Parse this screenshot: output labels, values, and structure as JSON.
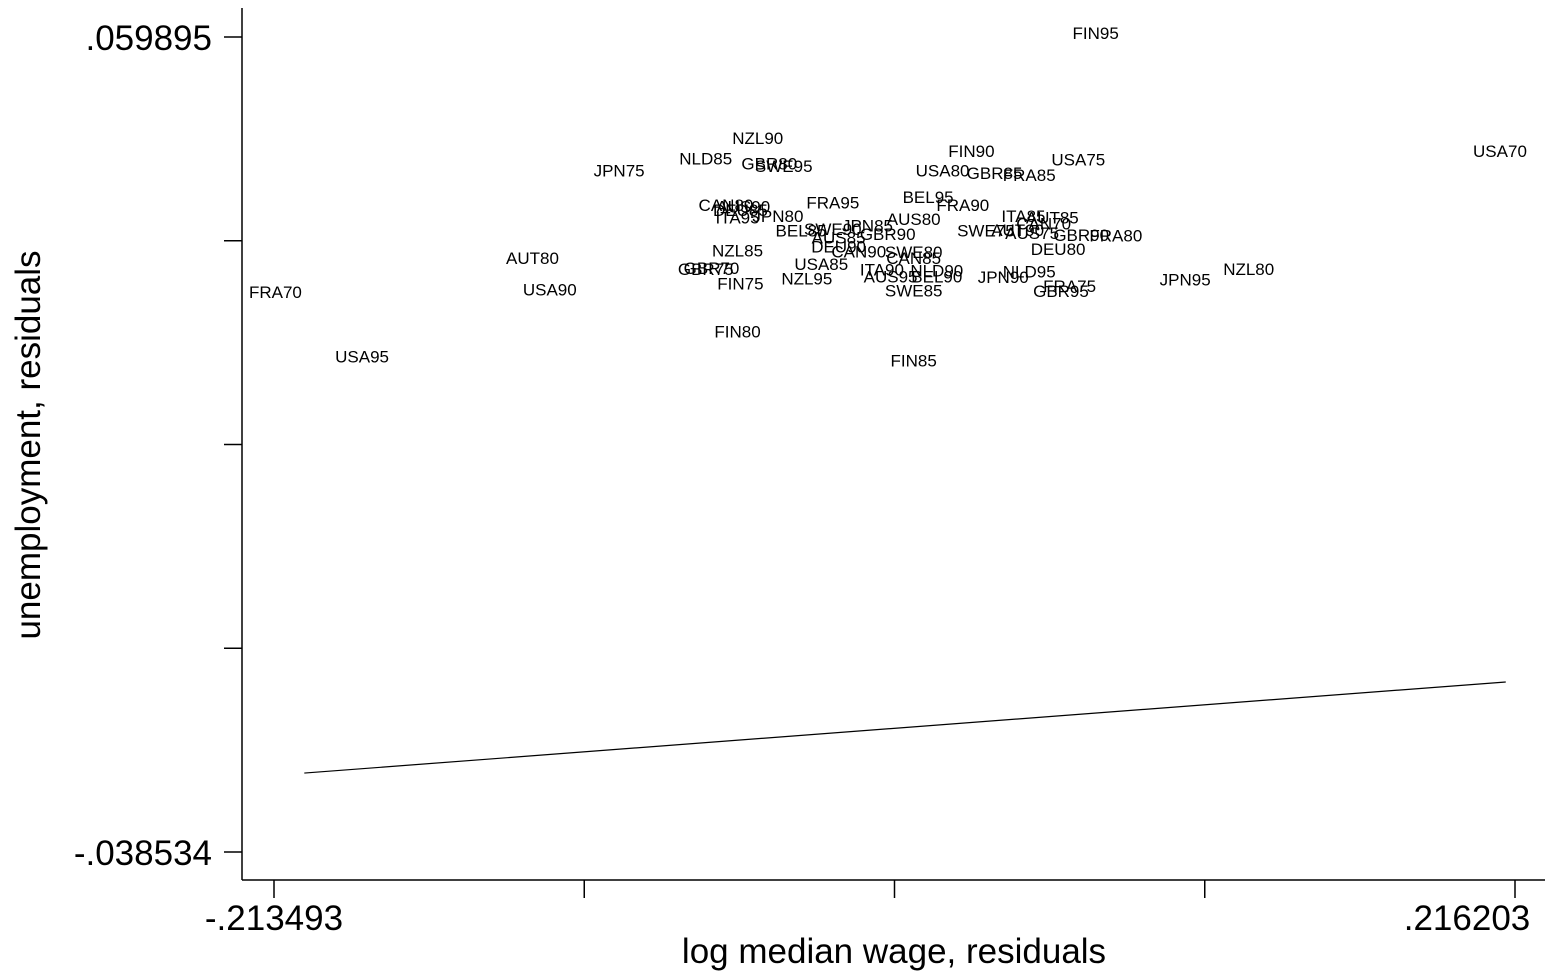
{
  "chart_data": {
    "type": "scatter",
    "xlabel": "log median wage, residuals",
    "ylabel": "unemployment, residuals",
    "xlim": [
      -0.213493,
      0.216203
    ],
    "ylim": [
      -0.038534,
      0.059895
    ],
    "x_tick_labels": [
      ".213493",
      ".216203"
    ],
    "y_tick_labels": [
      ".059895",
      "-.038534"
    ],
    "x_ticks": [
      -0.213493,
      -0.106069,
      0.001355,
      0.108779,
      0.216203
    ],
    "y_ticks": [
      -0.038534,
      -0.028691,
      -0.018848,
      -0.009005,
      0.000838,
      0.010681,
      0.020524,
      0.030367,
      0.040209,
      0.050052,
      0.059895
    ],
    "y_tick_labels_display": [
      ".059895",
      "-.038534"
    ],
    "fit_line": {
      "x": [
        -0.203,
        0.213
      ],
      "y": [
        -0.029,
        -0.018
      ]
    },
    "grid": false,
    "points": [
      {
        "label": "FIN95",
        "x": 0.071,
        "y": 0.0604
      },
      {
        "label": "USA70",
        "x": 0.211,
        "y": 0.0461
      },
      {
        "label": "NZL90",
        "x": -0.046,
        "y": 0.0477
      },
      {
        "label": "FIN90",
        "x": 0.028,
        "y": 0.0461
      },
      {
        "label": "USA75",
        "x": 0.065,
        "y": 0.0451
      },
      {
        "label": "NLD85",
        "x": -0.064,
        "y": 0.0452
      },
      {
        "label": "GBR80",
        "x": -0.042,
        "y": 0.0446
      },
      {
        "label": "SWE95",
        "x": -0.037,
        "y": 0.0443
      },
      {
        "label": "JPN75",
        "x": -0.094,
        "y": 0.0438
      },
      {
        "label": "USA80",
        "x": 0.018,
        "y": 0.0438
      },
      {
        "label": "GBR85",
        "x": 0.036,
        "y": 0.0435
      },
      {
        "label": "FRA85",
        "x": 0.048,
        "y": 0.0432
      },
      {
        "label": "BEL95",
        "x": 0.013,
        "y": 0.0406
      },
      {
        "label": "FRA95",
        "x": -0.02,
        "y": 0.0399
      },
      {
        "label": "FRA90",
        "x": 0.025,
        "y": 0.0396
      },
      {
        "label": "CAN80",
        "x": -0.057,
        "y": 0.0396
      },
      {
        "label": "AUS90",
        "x": -0.051,
        "y": 0.0394
      },
      {
        "label": "DEU85",
        "x": -0.052,
        "y": 0.039
      },
      {
        "label": "JPN80",
        "x": -0.039,
        "y": 0.0383
      },
      {
        "label": "ITA95",
        "x": -0.053,
        "y": 0.0381
      },
      {
        "label": "AUS80",
        "x": 0.008,
        "y": 0.0379
      },
      {
        "label": "ITA85",
        "x": 0.046,
        "y": 0.0383
      },
      {
        "label": "AUT85",
        "x": 0.056,
        "y": 0.0381
      },
      {
        "label": "CAN70",
        "x": 0.053,
        "y": 0.0374
      },
      {
        "label": "JPN85",
        "x": -0.008,
        "y": 0.0371
      },
      {
        "label": "SWE90",
        "x": -0.02,
        "y": 0.0367
      },
      {
        "label": "BEL85",
        "x": -0.031,
        "y": 0.0365
      },
      {
        "label": "SWE75",
        "x": 0.033,
        "y": 0.0365
      },
      {
        "label": "AUT90",
        "x": 0.044,
        "y": 0.0366
      },
      {
        "label": "GBR90",
        "x": -0.001,
        "y": 0.0361
      },
      {
        "label": "AUS75",
        "x": 0.049,
        "y": 0.0362
      },
      {
        "label": "GBR90",
        "x": 0.066,
        "y": 0.036
      },
      {
        "label": "FRA80",
        "x": 0.078,
        "y": 0.0359
      },
      {
        "label": "AUS85",
        "x": -0.018,
        "y": 0.0357
      },
      {
        "label": "DEU90",
        "x": -0.018,
        "y": 0.0346
      },
      {
        "label": "NZL85",
        "x": -0.053,
        "y": 0.0341
      },
      {
        "label": "DEU80",
        "x": 0.058,
        "y": 0.0343
      },
      {
        "label": "CAN90",
        "x": -0.011,
        "y": 0.034
      },
      {
        "label": "SWE80",
        "x": 0.008,
        "y": 0.0339
      },
      {
        "label": "AUT80",
        "x": -0.124,
        "y": 0.0332
      },
      {
        "label": "CAN85",
        "x": 0.008,
        "y": 0.0332
      },
      {
        "label": "USA85",
        "x": -0.024,
        "y": 0.0325
      },
      {
        "label": "GBR70",
        "x": -0.062,
        "y": 0.032
      },
      {
        "label": "GBR75",
        "x": -0.064,
        "y": 0.0319
      },
      {
        "label": "ITA90",
        "x": -0.003,
        "y": 0.0318
      },
      {
        "label": "NLD90",
        "x": 0.016,
        "y": 0.0317
      },
      {
        "label": "NLD95",
        "x": 0.048,
        "y": 0.0316
      },
      {
        "label": "NZL80",
        "x": 0.124,
        "y": 0.0319
      },
      {
        "label": "AUS95",
        "x": 0.0,
        "y": 0.031
      },
      {
        "label": "BEL90",
        "x": 0.016,
        "y": 0.031
      },
      {
        "label": "JPN90",
        "x": 0.039,
        "y": 0.0309
      },
      {
        "label": "NZL95",
        "x": -0.029,
        "y": 0.0307
      },
      {
        "label": "JPN95",
        "x": 0.102,
        "y": 0.0306
      },
      {
        "label": "FIN75",
        "x": -0.052,
        "y": 0.0301
      },
      {
        "label": "FRA75",
        "x": 0.062,
        "y": 0.0298
      },
      {
        "label": "SWE85",
        "x": 0.008,
        "y": 0.0293
      },
      {
        "label": "GBR95",
        "x": 0.059,
        "y": 0.0292
      },
      {
        "label": "USA90",
        "x": -0.118,
        "y": 0.0294
      },
      {
        "label": "FRA70",
        "x": -0.213,
        "y": 0.0291
      },
      {
        "label": "FIN80",
        "x": -0.053,
        "y": 0.0243
      },
      {
        "label": "USA95",
        "x": -0.183,
        "y": 0.0213
      },
      {
        "label": "FIN85",
        "x": 0.008,
        "y": 0.0208
      }
    ]
  }
}
